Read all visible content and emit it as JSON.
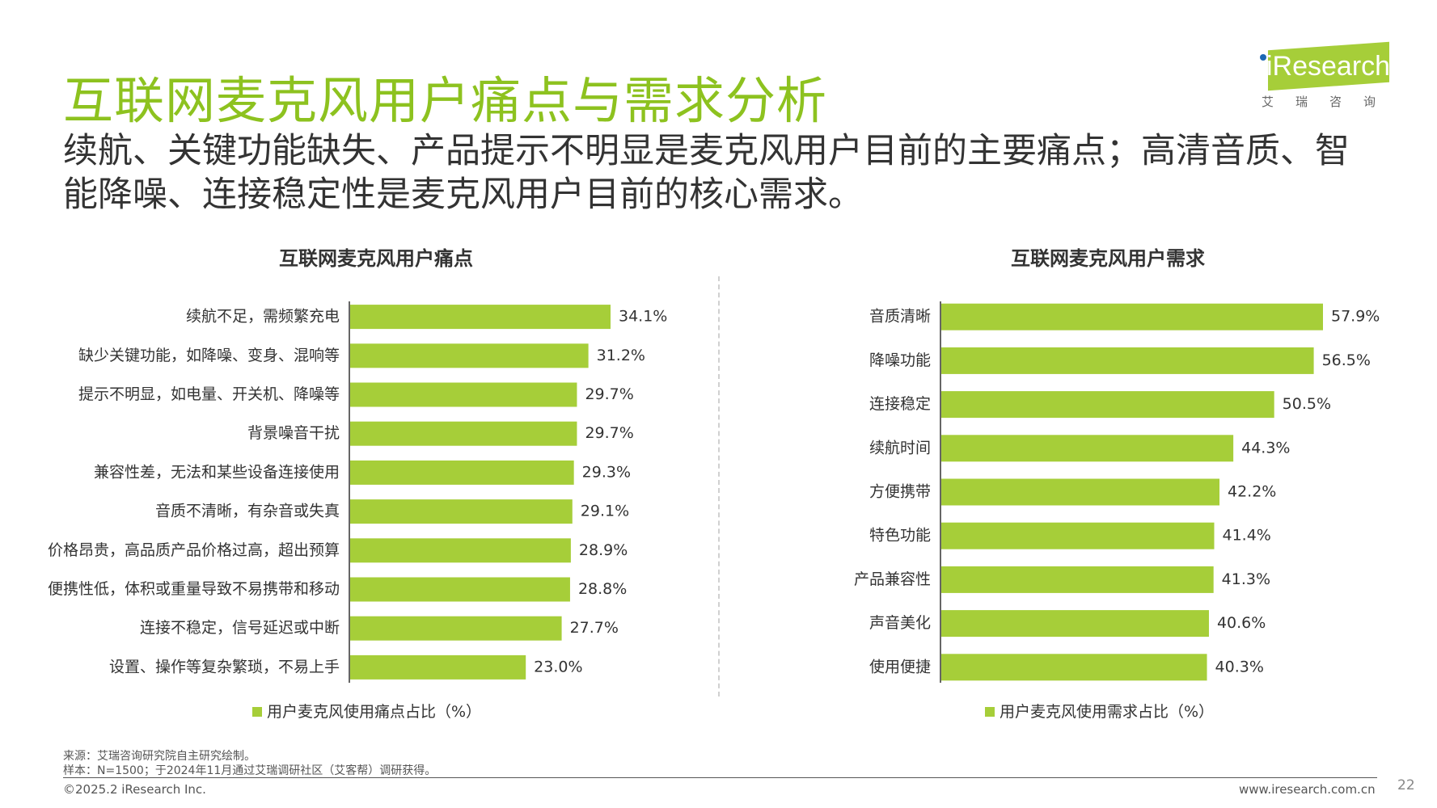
{
  "header": {
    "title": "互联网麦克风用户痛点与需求分析",
    "subtitle": "续航、关键功能缺失、产品提示不明显是麦克风用户目前的主要痛点；高清音质、智能降噪、连接稳定性是麦克风用户目前的核心需求。",
    "logo_text": "iResearch",
    "logo_cn": "艾瑞咨询"
  },
  "colors": {
    "accent": "#8dc21f",
    "bar": "#a6ce39"
  },
  "chart_data": [
    {
      "type": "bar",
      "orientation": "horizontal",
      "title": "互联网麦克风用户痛点",
      "categories": [
        "续航不足，需频繁充电",
        "缺少关键功能，如降噪、变身、混响等",
        "提示不明显，如电量、开关机、降噪等",
        "背景噪音干扰",
        "兼容性差，无法和某些设备连接使用",
        "音质不清晰，有杂音或失真",
        "价格昂贵，高品质产品价格过高，超出预算",
        "便携性低，体积或重量导致不易携带和移动",
        "连接不稳定，信号延迟或中断",
        "设置、操作等复杂繁琐，不易上手"
      ],
      "series": [
        {
          "name": "用户麦克风使用痛点占比（%）",
          "values": [
            34.1,
            31.2,
            29.7,
            29.7,
            29.3,
            29.1,
            28.9,
            28.8,
            27.7,
            23.0
          ]
        }
      ],
      "value_labels": [
        "34.1%",
        "31.2%",
        "29.7%",
        "29.7%",
        "29.3%",
        "29.1%",
        "28.9%",
        "28.8%",
        "27.7%",
        "23.0%"
      ],
      "xlim": [
        0,
        34.1
      ],
      "legend": "bottom"
    },
    {
      "type": "bar",
      "orientation": "horizontal",
      "title": "互联网麦克风用户需求",
      "categories": [
        "音质清晰",
        "降噪功能",
        "连接稳定",
        "续航时间",
        "方便携带",
        "特色功能",
        "产品兼容性",
        "声音美化",
        "使用便捷"
      ],
      "series": [
        {
          "name": "用户麦克风使用需求占比（%）",
          "values": [
            57.9,
            56.5,
            50.5,
            44.3,
            42.2,
            41.4,
            41.3,
            40.6,
            40.3
          ]
        }
      ],
      "value_labels": [
        "57.9%",
        "56.5%",
        "50.5%",
        "44.3%",
        "42.2%",
        "41.4%",
        "41.3%",
        "40.6%",
        "40.3%"
      ],
      "xlim": [
        0,
        57.9
      ],
      "legend": "bottom"
    }
  ],
  "footer": {
    "source": "来源：艾瑞咨询研究院自主研究绘制。",
    "sample": "样本：N=1500；于2024年11月通过艾瑞调研社区（艾客帮）调研获得。",
    "copyright": "©2025.2 iResearch Inc.",
    "website": "www.iresearch.com.cn",
    "page": "22"
  }
}
